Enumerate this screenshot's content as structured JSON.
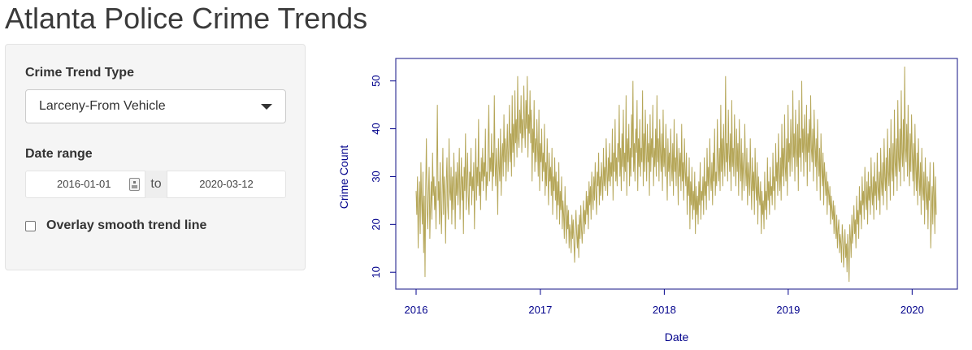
{
  "app": {
    "title": "Atlanta Police Crime Trends"
  },
  "sidebar": {
    "crime_type": {
      "label": "Crime Trend Type",
      "selected": "Larceny-From Vehicle"
    },
    "date_range": {
      "label": "Date range",
      "start": "2016-01-01",
      "separator": "to",
      "end": "2020-03-12"
    },
    "smooth": {
      "label": "Overlay smooth trend line",
      "checked": false
    }
  },
  "colors": {
    "line": "#b5a658",
    "axis": "#00008b",
    "frame": "#3a3a9a"
  },
  "icons": {
    "calendar": "calendar-icon",
    "dropdown": "chevron-down-icon"
  },
  "chart_data": {
    "type": "line",
    "title": "",
    "xlabel": "Date",
    "ylabel": "Crime Count",
    "xlim": [
      "2016-01-01",
      "2020-03-12"
    ],
    "ylim": [
      8,
      53
    ],
    "xticks": [
      "2016",
      "2017",
      "2018",
      "2019",
      "2020"
    ],
    "yticks": [
      10,
      20,
      30,
      40,
      50
    ],
    "grid": false,
    "series": [
      {
        "frequency": "daily",
        "values": [
          27,
          22,
          30,
          15,
          24,
          29,
          18,
          33,
          25,
          20,
          31,
          14,
          26,
          9,
          28,
          38,
          23,
          19,
          27,
          32,
          17,
          24,
          29,
          21,
          35,
          26,
          30,
          23,
          28,
          19,
          31,
          45,
          25,
          29,
          20,
          33,
          24,
          18,
          27,
          36,
          22,
          30,
          26,
          16,
          29,
          34,
          24,
          21,
          38,
          27,
          25,
          32,
          20,
          30,
          23,
          35,
          28,
          19,
          31,
          26,
          33,
          24,
          29,
          36,
          21,
          28,
          34,
          25,
          30,
          18,
          32,
          27,
          39,
          23,
          29,
          35,
          26,
          22,
          31,
          28,
          36,
          24,
          30,
          27,
          33,
          19,
          29,
          38,
          25,
          32,
          28,
          42,
          26,
          31,
          23,
          34,
          29,
          36,
          27,
          33,
          30,
          40,
          25,
          31,
          28,
          37,
          45,
          29,
          34,
          31,
          39,
          27,
          35,
          30,
          47,
          33,
          28,
          36,
          31,
          22,
          38,
          32,
          29,
          40,
          26,
          34,
          37,
          30,
          43,
          33,
          38,
          29,
          35,
          41,
          31,
          36,
          45,
          33,
          39,
          30,
          47,
          35,
          41,
          32,
          48,
          37,
          42,
          34,
          51,
          38,
          36,
          44,
          39,
          47,
          35,
          42,
          38,
          49,
          41,
          36,
          46,
          40,
          51,
          34,
          43,
          39,
          48,
          37,
          44,
          29,
          40,
          35,
          46,
          31,
          38,
          33,
          42,
          36,
          30,
          44,
          27,
          37,
          33,
          40,
          29,
          35,
          31,
          41,
          26,
          33,
          28,
          38,
          31,
          24,
          35,
          29,
          32,
          26,
          36,
          22,
          30,
          27,
          34,
          25,
          31,
          21,
          29,
          24,
          33,
          20,
          27,
          23,
          30,
          19,
          25,
          22,
          17,
          28,
          21,
          16,
          24,
          19,
          23,
          15,
          20,
          18,
          14,
          22,
          17,
          21,
          16,
          12,
          19,
          23,
          18,
          15,
          20,
          13,
          22,
          17,
          24,
          19,
          16,
          21,
          25,
          18,
          23,
          20,
          27,
          22,
          26,
          19,
          29,
          24,
          28,
          21,
          31,
          26,
          23,
          30,
          25,
          33,
          27,
          22,
          31,
          28,
          35,
          24,
          30,
          26,
          33,
          29,
          25,
          36,
          28,
          32,
          27,
          38,
          31,
          26,
          34,
          29,
          37,
          28,
          33,
          30,
          40,
          25,
          35,
          31,
          42,
          29,
          34,
          28,
          37,
          33,
          45,
          30,
          36,
          27,
          39,
          32,
          44,
          29,
          35,
          31,
          47,
          26,
          38,
          33,
          41,
          28,
          36,
          30,
          43,
          34,
          50,
          31,
          37,
          29,
          40,
          35,
          46,
          27,
          38,
          32,
          42,
          30,
          36,
          33,
          48,
          28,
          39,
          31,
          44,
          35,
          29,
          41,
          33,
          37,
          26,
          43,
          31,
          38,
          34,
          45,
          28,
          36,
          32,
          40,
          30,
          47,
          33,
          38,
          29,
          42,
          35,
          31,
          39,
          27,
          44,
          32,
          36,
          30,
          41,
          34,
          25,
          38,
          31,
          35,
          28,
          40,
          33,
          29,
          37,
          26,
          42,
          31,
          34,
          28,
          39,
          32,
          24,
          36,
          30,
          35,
          27,
          41,
          29,
          33,
          25,
          38,
          31,
          28,
          35,
          22,
          30,
          26,
          34,
          19,
          29,
          24,
          32,
          21,
          27,
          23,
          31,
          18,
          28,
          22,
          26,
          20,
          29,
          24,
          33,
          21,
          27,
          25,
          30,
          22,
          34,
          26,
          29,
          23,
          36,
          28,
          32,
          25,
          38,
          30,
          27,
          33,
          24,
          35,
          29,
          40,
          26,
          31,
          28,
          42,
          33,
          29,
          36,
          27,
          45,
          31,
          38,
          28,
          41,
          34,
          30,
          51,
          33,
          37,
          29,
          44,
          35,
          31,
          39,
          27,
          46,
          32,
          36,
          30,
          43,
          34,
          28,
          40,
          31,
          37,
          26,
          42,
          33,
          29,
          38,
          25,
          35,
          31,
          27,
          41,
          32,
          28,
          36,
          24,
          33,
          30,
          26,
          38,
          29,
          23,
          34,
          27,
          31,
          22,
          36,
          28,
          25,
          33,
          20,
          30,
          26,
          24,
          29,
          18,
          27,
          22,
          25,
          19,
          31,
          23,
          27,
          21,
          34,
          25,
          29,
          22,
          32,
          26,
          28,
          24,
          35,
          27,
          30,
          23,
          37,
          29,
          33,
          26,
          39,
          31,
          27,
          34,
          25,
          41,
          30,
          36,
          28,
          43,
          32,
          29,
          38,
          26,
          45,
          33,
          37,
          30,
          42,
          35,
          31,
          48,
          34,
          39,
          29,
          44,
          36,
          32,
          41,
          27,
          46,
          34,
          38,
          31,
          50,
          35,
          40,
          30,
          43,
          37,
          33,
          45,
          28,
          39,
          35,
          42,
          31,
          47,
          36,
          33,
          40,
          29,
          44,
          37,
          32,
          38,
          27,
          42,
          34,
          30,
          36,
          25,
          39,
          32,
          28,
          35,
          24,
          33,
          30,
          26,
          31,
          22,
          29,
          27,
          24,
          28,
          20,
          26,
          23,
          21,
          25,
          18,
          24,
          20,
          17,
          22,
          15,
          19,
          21,
          14,
          18,
          16,
          12,
          20,
          17,
          11,
          15,
          19,
          13,
          16,
          10,
          18,
          14,
          8,
          20,
          17,
          13,
          22,
          16,
          19,
          24,
          18,
          21,
          15,
          26,
          20,
          23,
          17,
          28,
          22,
          25,
          19,
          30,
          24,
          27,
          21,
          32,
          26,
          23,
          29,
          20,
          31,
          25,
          28,
          22,
          34,
          27,
          24,
          30,
          21,
          33,
          26,
          29,
          23,
          35,
          28,
          25,
          31,
          22,
          36,
          29,
          26,
          33,
          24,
          38,
          30,
          27,
          34,
          23,
          40,
          31,
          28,
          36,
          25,
          42,
          32,
          29,
          37,
          26,
          44,
          33,
          30,
          38,
          27,
          46,
          34,
          31,
          40,
          28,
          48,
          35,
          32,
          42,
          29,
          53,
          36,
          33,
          41,
          30,
          45,
          34,
          28,
          39,
          31,
          43,
          35,
          29,
          37,
          26,
          41,
          32,
          27,
          35,
          24,
          38,
          30,
          26,
          33,
          22,
          36,
          28,
          25,
          31,
          20,
          34,
          27,
          23,
          30,
          19,
          29,
          25,
          33,
          15,
          22,
          28,
          20,
          33,
          26,
          18,
          30,
          22
        ]
      }
    ]
  }
}
